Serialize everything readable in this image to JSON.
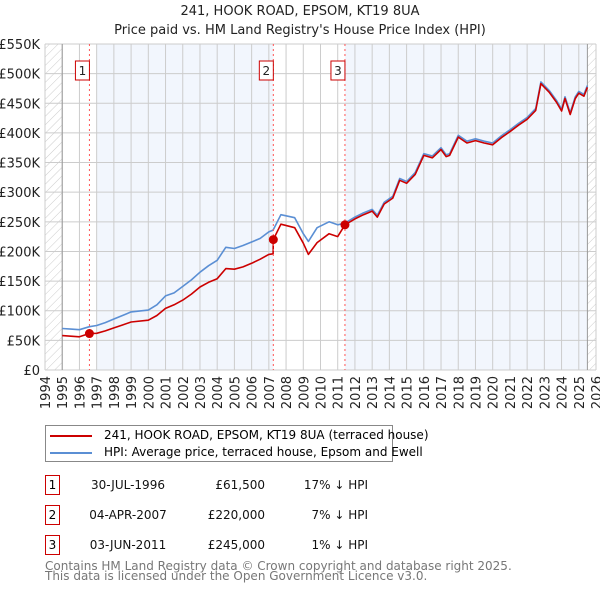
{
  "chart_data": {
    "type": "line",
    "title": "241, HOOK ROAD, EPSOM, KT19 8UA",
    "subtitle": "Price paid vs. HM Land Registry's House Price Index (HPI)",
    "xlim": [
      1994,
      2026
    ],
    "ylim": [
      0,
      550000
    ],
    "x_ticks": [
      "1994",
      "1995",
      "1996",
      "1997",
      "1998",
      "1999",
      "2000",
      "2001",
      "2002",
      "2003",
      "2004",
      "2005",
      "2006",
      "2007",
      "2008",
      "2009",
      "2010",
      "2011",
      "2012",
      "2013",
      "2014",
      "2015",
      "2016",
      "2017",
      "2018",
      "2019",
      "2020",
      "2021",
      "2022",
      "2023",
      "2024",
      "2025",
      "2026"
    ],
    "y_ticks": [
      {
        "v": 0,
        "label": "£0"
      },
      {
        "v": 50000,
        "label": "£50K"
      },
      {
        "v": 100000,
        "label": "£100K"
      },
      {
        "v": 150000,
        "label": "£150K"
      },
      {
        "v": 200000,
        "label": "£200K"
      },
      {
        "v": 250000,
        "label": "£250K"
      },
      {
        "v": 300000,
        "label": "£300K"
      },
      {
        "v": 350000,
        "label": "£350K"
      },
      {
        "v": 400000,
        "label": "£400K"
      },
      {
        "v": 450000,
        "label": "£450K"
      },
      {
        "v": 500000,
        "label": "£500K"
      },
      {
        "v": 550000,
        "label": "£550K"
      }
    ],
    "grid": true,
    "data_range": [
      1995,
      2025.5
    ],
    "series": [
      {
        "name": "241, HOOK ROAD, EPSOM, KT19 8UA (terraced house)",
        "color": "#cc0000",
        "x": [
          1995,
          1995.5,
          1996,
          1996.58,
          1997,
          1997.5,
          1998,
          1998.5,
          1999,
          2000,
          2000.5,
          2001,
          2001.5,
          2002,
          2002.5,
          2003,
          2003.5,
          2004,
          2004.5,
          2005,
          2005.5,
          2006,
          2006.5,
          2007,
          2007.25,
          2007.26,
          2007.7,
          2008.5,
          2009,
          2009.3,
          2009.8,
          2010.5,
          2011,
          2011.42,
          2012,
          2012.5,
          2013,
          2013.3,
          2013.7,
          2014.2,
          2014.6,
          2015,
          2015.5,
          2016,
          2016.5,
          2017,
          2017.3,
          2017.5,
          2018,
          2018.5,
          2019,
          2019.5,
          2020,
          2020.5,
          2021,
          2021.5,
          2022,
          2022.5,
          2022.8,
          2023.3,
          2023.7,
          2024,
          2024.2,
          2024.5,
          2024.8,
          2025,
          2025.3,
          2025.5
        ],
        "y": [
          58000,
          57000,
          56000,
          61500,
          62000,
          66000,
          71000,
          76000,
          81000,
          84000,
          92000,
          104000,
          110000,
          118000,
          128000,
          140000,
          148000,
          154000,
          171000,
          170000,
          174000,
          180000,
          187000,
          195000,
          196000,
          220000,
          246000,
          240000,
          214000,
          195000,
          215000,
          230000,
          225000,
          245000,
          255000,
          262000,
          268000,
          258000,
          280000,
          290000,
          320000,
          315000,
          330000,
          362000,
          358000,
          372000,
          360000,
          362000,
          393000,
          383000,
          387000,
          383000,
          380000,
          392000,
          402000,
          413000,
          423000,
          438000,
          483000,
          468000,
          452000,
          437000,
          458000,
          431000,
          458000,
          467000,
          462000,
          477000
        ]
      },
      {
        "name": "HPI: Average price, terraced house, Epsom and Ewell",
        "color": "#5b8fd4",
        "x": [
          1995,
          1995.5,
          1996,
          1996.58,
          1997,
          1997.5,
          1998,
          1998.5,
          1999,
          2000,
          2000.5,
          2001,
          2001.5,
          2002,
          2002.5,
          2003,
          2003.5,
          2004,
          2004.5,
          2005,
          2005.5,
          2006,
          2006.5,
          2007,
          2007.25,
          2007.7,
          2008.5,
          2009,
          2009.3,
          2009.8,
          2010.5,
          2011,
          2011.42,
          2012,
          2012.5,
          2013,
          2013.3,
          2013.7,
          2014.2,
          2014.6,
          2015,
          2015.5,
          2016,
          2016.5,
          2017,
          2017.3,
          2017.5,
          2018,
          2018.5,
          2019,
          2019.5,
          2020,
          2020.5,
          2021,
          2021.5,
          2022,
          2022.5,
          2022.8,
          2023.3,
          2023.7,
          2024,
          2024.2,
          2024.5,
          2024.8,
          2025,
          2025.3,
          2025.5
        ],
        "y": [
          70000,
          69000,
          68000,
          73000,
          75000,
          80000,
          86000,
          92000,
          98000,
          101000,
          110000,
          125000,
          130000,
          141000,
          152000,
          165000,
          176000,
          185000,
          207000,
          205000,
          210000,
          216000,
          222000,
          233000,
          236000,
          262000,
          257000,
          230000,
          217000,
          240000,
          250000,
          245000,
          248000,
          258000,
          265000,
          271000,
          261000,
          283000,
          293000,
          323000,
          318000,
          333000,
          365000,
          361000,
          375000,
          363000,
          365000,
          396000,
          386000,
          390000,
          386000,
          383000,
          395000,
          405000,
          416000,
          426000,
          441000,
          486000,
          471000,
          455000,
          440000,
          461000,
          434000,
          461000,
          470000,
          465000,
          480000
        ]
      }
    ],
    "transactions": [
      {
        "num": "1",
        "x": 1996.58,
        "price": 61500,
        "date": "30-JUL-1996",
        "price_label": "£61,500",
        "hpi_diff": "17% ↓ HPI"
      },
      {
        "num": "2",
        "x": 2007.26,
        "price": 220000,
        "date": "04-APR-2007",
        "price_label": "£220,000",
        "hpi_diff": "7% ↓ HPI"
      },
      {
        "num": "3",
        "x": 2011.42,
        "price": 245000,
        "date": "03-JUN-2011",
        "price_label": "£245,000",
        "hpi_diff": "1% ↓ HPI"
      }
    ],
    "legend": "bottom"
  },
  "footer": {
    "line1": "Contains HM Land Registry data © Crown copyright and database right 2025.",
    "line2": "This data is licensed under the Open Government Licence v3.0."
  }
}
